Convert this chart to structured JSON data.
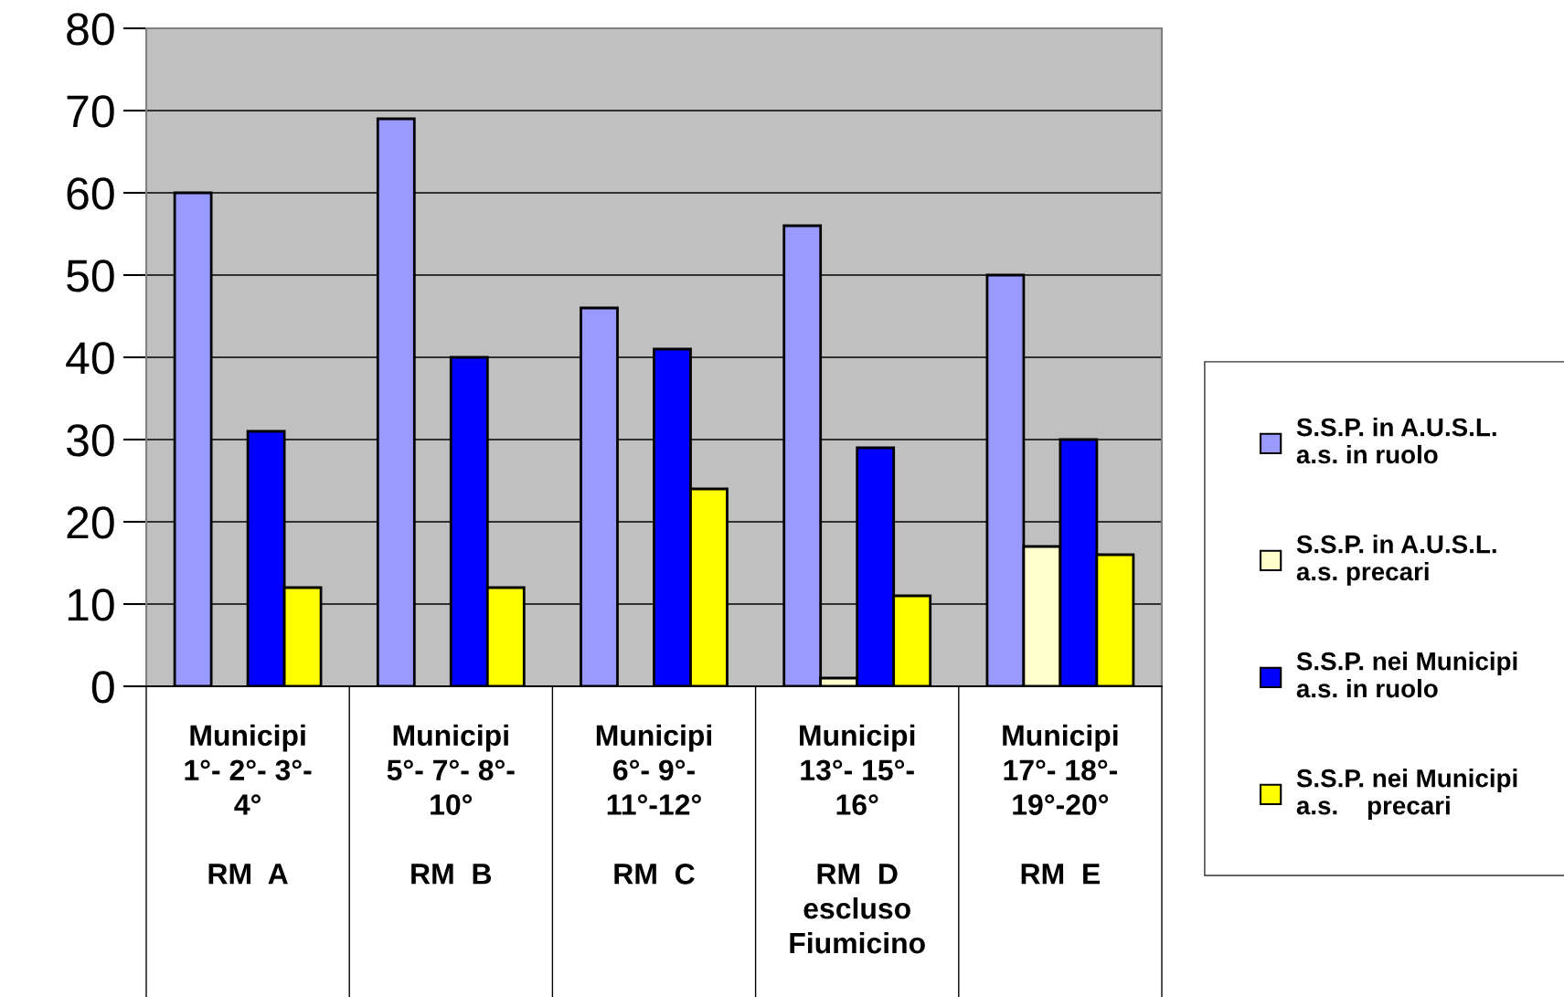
{
  "chart_data": {
    "type": "bar",
    "categories": [
      "Municipi\n1°- 2°- 3°-\n4°\n\nRM  A",
      "Municipi\n5°- 7°- 8°-\n10°\n\nRM  B",
      "Municipi\n6°- 9°-\n11°-12°\n\nRM  C",
      "Municipi\n13°- 15°-\n16°\n\nRM  D\nescluso\nFiumicino",
      "Municipi\n17°- 18°-\n19°-20°\n\nRM  E"
    ],
    "series": [
      {
        "name": "S.S.P. in A.U.S.L.\na.s. in ruolo",
        "color": "#9999ff",
        "values": [
          60,
          69,
          46,
          56,
          50
        ]
      },
      {
        "name": "S.S.P. in A.U.S.L.\na.s. precari",
        "color": "#ffffcc",
        "values": [
          null,
          null,
          null,
          1,
          17
        ]
      },
      {
        "name": "S.S.P. nei Municipi\na.s. in ruolo",
        "color": "#0000ff",
        "values": [
          31,
          40,
          41,
          29,
          30
        ]
      },
      {
        "name": "S.S.P. nei Municipi\na.s.    precari",
        "color": "#ffff00",
        "values": [
          12,
          12,
          24,
          11,
          16
        ]
      }
    ],
    "ylim": [
      0,
      80
    ],
    "yticks": [
      0,
      10,
      20,
      30,
      40,
      50,
      60,
      70,
      80
    ],
    "grid": "y",
    "legend": "right"
  }
}
